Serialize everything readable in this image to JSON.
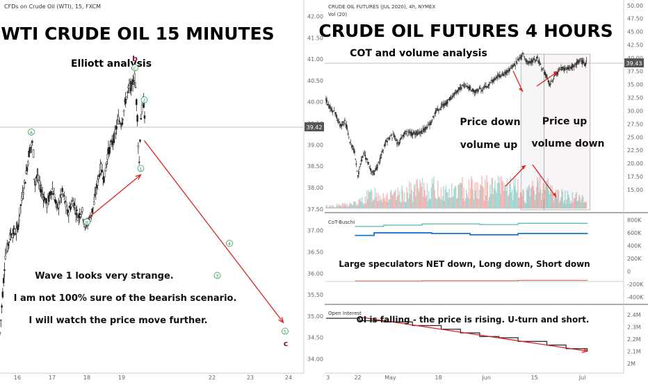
{
  "chart_data": [
    {
      "type": "candlestick",
      "source_label": "CFDs on Crude Oil (WTI), 15, FXCM",
      "title": "WTI CRUDE OIL 15 MINUTES",
      "subtitle": "Elliott analysis",
      "x_ticks": [
        "16",
        "17",
        "18",
        "19",
        "22",
        "23",
        "24"
      ],
      "y_ticks": [
        "42.00",
        "41.50",
        "41.00",
        "40.50",
        "40.00",
        "39.50",
        "39.00",
        "38.50",
        "38.00",
        "37.50",
        "37.00",
        "36.50",
        "36.00",
        "35.50",
        "35.00",
        "34.50",
        "34.00"
      ],
      "ylim": [
        33.7,
        42.3
      ],
      "last_price": "39.42",
      "price_path": [
        [
          15.5,
          34.6
        ],
        [
          15.65,
          36.4
        ],
        [
          15.8,
          36.9
        ],
        [
          16.0,
          37.0
        ],
        [
          16.1,
          37.6
        ],
        [
          16.25,
          38.3
        ],
        [
          16.35,
          38.9
        ],
        [
          16.45,
          39.05
        ],
        [
          16.5,
          38.0
        ],
        [
          16.55,
          38.3
        ],
        [
          16.7,
          37.9
        ],
        [
          16.85,
          37.6
        ],
        [
          17.0,
          38.0
        ],
        [
          17.15,
          37.5
        ],
        [
          17.3,
          37.9
        ],
        [
          17.45,
          37.4
        ],
        [
          17.6,
          37.7
        ],
        [
          17.75,
          37.3
        ],
        [
          17.85,
          37.5
        ],
        [
          17.95,
          37.1
        ],
        [
          18.1,
          37.3
        ],
        [
          18.2,
          37.6
        ],
        [
          18.3,
          38.1
        ],
        [
          18.4,
          38.5
        ],
        [
          18.5,
          38.2
        ],
        [
          18.6,
          38.8
        ],
        [
          18.7,
          39.0
        ],
        [
          18.8,
          39.2
        ],
        [
          18.9,
          39.6
        ],
        [
          19.0,
          39.5
        ],
        [
          19.1,
          40.0
        ],
        [
          19.2,
          40.3
        ],
        [
          19.3,
          40.4
        ],
        [
          19.38,
          40.6
        ],
        [
          19.45,
          39.7
        ],
        [
          19.5,
          38.5
        ],
        [
          19.55,
          39.6
        ],
        [
          19.62,
          40.1
        ],
        [
          19.68,
          39.5
        ]
      ],
      "waves": [
        {
          "label": "A",
          "x": 16.4,
          "y": 39.25,
          "color": "#2e9e4f"
        },
        {
          "label": "B",
          "x": 18.0,
          "y": 37.15,
          "color": "#2e9e4f"
        },
        {
          "label": "C",
          "x": 19.38,
          "y": 40.75,
          "color": "#2e9e4f"
        },
        {
          "label": "b",
          "x": 19.38,
          "y": 40.95,
          "color": "#8b1040"
        },
        {
          "label": "1",
          "x": 19.55,
          "y": 38.4,
          "color": "#2e9e4f"
        },
        {
          "label": "2",
          "x": 19.65,
          "y": 40.0,
          "color": "#2e9e4f"
        },
        {
          "label": "4",
          "x": 22.1,
          "y": 36.65,
          "color": "#2e9e4f"
        },
        {
          "label": "3",
          "x": 21.75,
          "y": 35.9,
          "color": "#2e9e4f"
        },
        {
          "label": "5",
          "x": 23.7,
          "y": 34.6,
          "color": "#2e9e4f"
        },
        {
          "label": "c",
          "x": 23.72,
          "y": 34.3,
          "color": "#8b1040"
        }
      ],
      "arrows": [
        {
          "from": [
            18.05,
            37.3
          ],
          "to": [
            19.55,
            38.3
          ],
          "color": "#e02020"
        },
        {
          "from": [
            19.65,
            39.1
          ],
          "to": [
            23.65,
            34.85
          ],
          "color": "#e02020"
        }
      ],
      "notes": [
        "Wave 1 looks very strange.",
        "I am not 100% sure of the bearish scenario.",
        "I will watch the price move further."
      ]
    },
    {
      "type": "candlestick",
      "source_label": "CRUDE OIL FUTURES (JUL 2020), 4h, NYMEX",
      "volume_label": "Vol (20)",
      "title": "CRUDE OIL FUTURES 4 HOURS",
      "subtitle": "COT and volume analysis",
      "x_ticks": [
        "3",
        "22",
        "May",
        "18",
        "Jun",
        "15",
        "Jul"
      ],
      "y_ticks": [
        "50.00",
        "47.50",
        "45.00",
        "42.50",
        "40.00",
        "37.50",
        "35.00",
        "32.50",
        "30.00",
        "27.50",
        "25.00",
        "22.50",
        "20.00",
        "17.50",
        "15.00"
      ],
      "ylim": [
        12.5,
        50.5
      ],
      "last_price": "39.43",
      "price_path": [
        [
          0.0,
          32.0
        ],
        [
          0.05,
          30.5
        ],
        [
          0.1,
          29.5
        ],
        [
          0.15,
          27.0
        ],
        [
          0.2,
          28.0
        ],
        [
          0.25,
          24.0
        ],
        [
          0.3,
          22.0
        ],
        [
          0.33,
          17.5
        ],
        [
          0.36,
          20.0
        ],
        [
          0.4,
          22.0
        ],
        [
          0.45,
          19.5
        ],
        [
          0.5,
          18.0
        ],
        [
          0.55,
          20.0
        ],
        [
          0.62,
          24.0
        ],
        [
          0.7,
          25.5
        ],
        [
          0.75,
          23.5
        ],
        [
          0.82,
          26.0
        ],
        [
          0.9,
          25.5
        ],
        [
          1.0,
          26.0
        ],
        [
          1.08,
          27.5
        ],
        [
          1.15,
          30.0
        ],
        [
          1.25,
          31.5
        ],
        [
          1.35,
          33.5
        ],
        [
          1.45,
          35.0
        ],
        [
          1.55,
          33.5
        ],
        [
          1.6,
          34.0
        ],
        [
          1.68,
          34.5
        ],
        [
          1.75,
          36.0
        ],
        [
          1.85,
          37.0
        ],
        [
          1.95,
          38.5
        ],
        [
          2.0,
          39.5
        ],
        [
          2.05,
          41.0
        ],
        [
          2.1,
          39.0
        ],
        [
          2.15,
          39.5
        ],
        [
          2.2,
          40.0
        ],
        [
          2.28,
          37.0
        ],
        [
          2.33,
          35.0
        ],
        [
          2.38,
          36.5
        ],
        [
          2.45,
          38.0
        ],
        [
          2.5,
          38.0
        ],
        [
          2.58,
          38.5
        ],
        [
          2.65,
          39.5
        ],
        [
          2.7,
          38.8
        ],
        [
          2.72,
          39.43
        ]
      ],
      "volume_path": [
        [
          0.0,
          0.05
        ],
        [
          0.2,
          0.08
        ],
        [
          0.33,
          0.12
        ],
        [
          0.5,
          0.35
        ],
        [
          0.7,
          0.25
        ],
        [
          0.9,
          0.4
        ],
        [
          1.1,
          0.45
        ],
        [
          1.3,
          0.35
        ],
        [
          1.5,
          0.5
        ],
        [
          1.7,
          0.45
        ],
        [
          1.9,
          0.5
        ],
        [
          2.1,
          0.3
        ],
        [
          2.25,
          0.55
        ],
        [
          2.4,
          0.3
        ],
        [
          2.6,
          0.25
        ],
        [
          2.72,
          0.15
        ]
      ],
      "highlight_boxes": [
        {
          "label": "Price down volume up",
          "x_range": [
            2.03,
            2.27
          ]
        },
        {
          "label": "Price up volume down",
          "x_range": [
            2.27,
            2.75
          ]
        }
      ],
      "annotations": [
        "Price down",
        "volume up",
        "Price up",
        "volume down"
      ]
    },
    {
      "type": "line",
      "title": "CoT-Buschi",
      "note": "Large speculators NET down, Long down, Short down",
      "y_ticks": [
        "800K",
        "600K",
        "400K",
        "200K",
        "0",
        "-200K",
        "-400K"
      ],
      "ylim": [
        -450000,
        850000
      ],
      "series": [
        {
          "color": "#26a69a",
          "values": [
            [
              0.3,
              700000
            ],
            [
              0.6,
              720000
            ],
            [
              1.0,
              740000
            ],
            [
              1.6,
              730000
            ],
            [
              2.0,
              750000
            ],
            [
              2.72,
              740000
            ]
          ]
        },
        {
          "color": "#1976d2",
          "values": [
            [
              0.3,
              560000
            ],
            [
              0.5,
              600000
            ],
            [
              1.1,
              590000
            ],
            [
              1.5,
              570000
            ],
            [
              2.0,
              590000
            ],
            [
              2.72,
              580000
            ]
          ]
        },
        {
          "color": "#ef5350",
          "values": [
            [
              0.3,
              -150000
            ],
            [
              1.0,
              -145000
            ],
            [
              2.0,
              -140000
            ],
            [
              2.72,
              -135000
            ]
          ]
        }
      ]
    },
    {
      "type": "line",
      "title": "Open Interest",
      "note": "OI is falling - the price is rising. U-turn and short.",
      "y_ticks": [
        "2.4M",
        "2.3M",
        "2.2M",
        "2.1M",
        "2M"
      ],
      "ylim": [
        1.97,
        2.45
      ],
      "series": [
        {
          "color": "#222222",
          "values": [
            [
              0.0,
              2.37
            ],
            [
              0.2,
              2.37
            ],
            [
              0.35,
              2.35
            ],
            [
              0.6,
              2.34
            ],
            [
              0.9,
              2.31
            ],
            [
              1.2,
              2.28
            ],
            [
              1.4,
              2.25
            ],
            [
              1.6,
              2.22
            ],
            [
              1.8,
              2.21
            ],
            [
              2.0,
              2.18
            ],
            [
              2.3,
              2.15
            ],
            [
              2.5,
              2.12
            ],
            [
              2.72,
              2.1
            ]
          ]
        }
      ],
      "trend_arrow": {
        "from": [
          0.35,
          2.38
        ],
        "to": [
          2.72,
          2.1
        ],
        "color": "#e02020"
      }
    }
  ]
}
